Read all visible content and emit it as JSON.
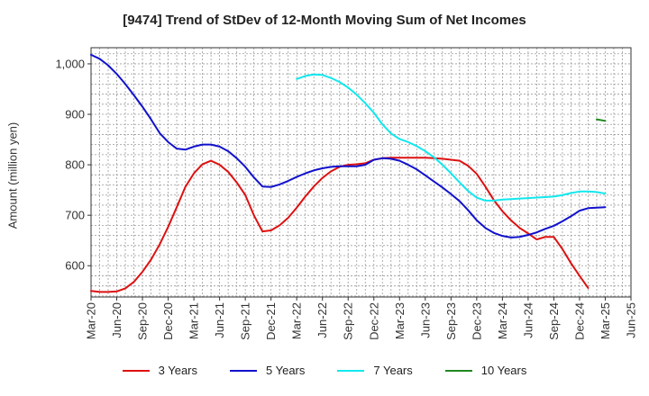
{
  "chart_data": {
    "type": "line",
    "title": "[9474]  Trend of StDev of 12-Month Moving Sum of Net Incomes",
    "xlabel": "",
    "ylabel": "Amount (million yen)",
    "ylim": [
      538,
      1032
    ],
    "yticks": [
      600,
      700,
      800,
      900,
      1000
    ],
    "ytick_labels": [
      "600",
      "700",
      "800",
      "900",
      "1,000"
    ],
    "xtick_labels": [
      "Mar-20",
      "Jun-20",
      "Sep-20",
      "Dec-20",
      "Mar-21",
      "Jun-21",
      "Sep-21",
      "Dec-21",
      "Mar-22",
      "Jun-22",
      "Sep-22",
      "Dec-22",
      "Mar-23",
      "Jun-23",
      "Sep-23",
      "Dec-23",
      "Mar-24",
      "Jun-24",
      "Sep-24",
      "Dec-24",
      "Mar-25",
      "Jun-25"
    ],
    "x_start": "Mar-20",
    "grid": true,
    "legend_position": "bottom",
    "series": [
      {
        "name": "3 Years",
        "color": "#dd1111",
        "start": "Mar-20",
        "values": [
          550,
          548,
          548,
          549,
          555,
          568,
          588,
          612,
          642,
          677,
          716,
          756,
          783,
          801,
          808,
          800,
          786,
          765,
          740,
          700,
          668,
          670,
          680,
          695,
          715,
          737,
          757,
          774,
          787,
          796,
          800,
          801,
          803,
          810,
          813,
          814,
          814,
          814,
          814,
          814,
          813,
          812,
          810,
          808,
          798,
          782,
          757,
          730,
          708,
          690,
          675,
          664,
          652,
          657,
          657,
          633,
          605,
          580,
          556
        ]
      },
      {
        "name": "5 Years",
        "color": "#1111cc",
        "start": "Mar-20",
        "values": [
          1018,
          1010,
          997,
          980,
          960,
          938,
          915,
          890,
          863,
          845,
          832,
          830,
          836,
          840,
          840,
          836,
          827,
          813,
          796,
          775,
          757,
          756,
          761,
          768,
          776,
          783,
          789,
          793,
          796,
          797,
          797,
          797,
          800,
          810,
          813,
          812,
          808,
          800,
          791,
          779,
          767,
          755,
          742,
          728,
          710,
          690,
          675,
          665,
          659,
          656,
          657,
          661,
          666,
          673,
          679,
          688,
          698,
          709,
          714,
          715,
          716
        ]
      },
      {
        "name": "7 Years",
        "color": "#11e8ee",
        "start": "Mar-22",
        "values": [
          970,
          976,
          979,
          978,
          972,
          964,
          953,
          939,
          922,
          903,
          880,
          862,
          851,
          845,
          837,
          827,
          815,
          800,
          783,
          765,
          748,
          735,
          729,
          729,
          731,
          732,
          733,
          734,
          735,
          736,
          737,
          740,
          744,
          747,
          747,
          746,
          743
        ]
      },
      {
        "name": "10 Years",
        "color": "#228822",
        "start": "Feb-25",
        "values": [
          890,
          887
        ]
      }
    ]
  }
}
